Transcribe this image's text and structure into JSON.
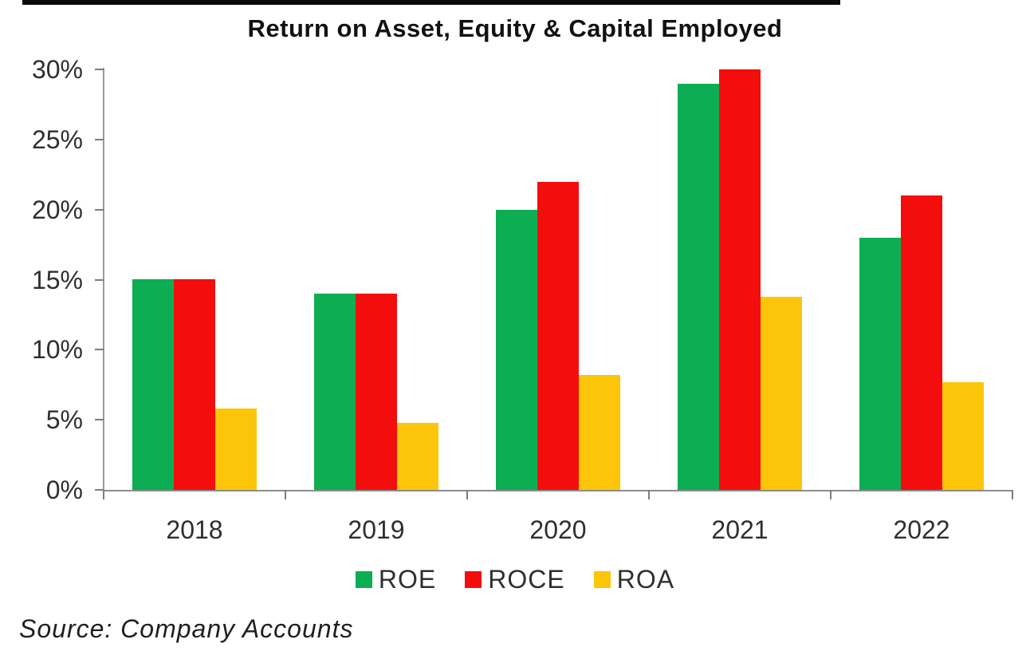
{
  "title": "Return on Asset, Equity & Capital Employed",
  "source_note": "Source: Company Accounts",
  "colors": {
    "roe_green": "#0DAE53",
    "roce_red": "#F40D0D",
    "roa_yellow": "#FDC50A",
    "axis_gray": "#8C8C8C",
    "text": "#2F2F2F",
    "top_rule_black": "#0B0B0B"
  },
  "chart_data": {
    "type": "bar",
    "title": "Return on Asset, Equity & Capital Employed",
    "categories": [
      "2018",
      "2019",
      "2020",
      "2021",
      "2022"
    ],
    "series": [
      {
        "name": "ROE",
        "color": "#0DAE53",
        "values": [
          15,
          14,
          20,
          29,
          18
        ]
      },
      {
        "name": "ROCE",
        "color": "#F40D0D",
        "values": [
          15,
          14,
          22,
          30,
          21
        ]
      },
      {
        "name": "ROA",
        "color": "#FDC50A",
        "values": [
          5.8,
          4.8,
          8.2,
          13.8,
          7.7
        ]
      }
    ],
    "xlabel": "",
    "ylabel": "",
    "ylim": [
      0,
      30
    ],
    "y_ticks": [
      {
        "label": "0%",
        "value": 0
      },
      {
        "label": "5%",
        "value": 5
      },
      {
        "label": "10%",
        "value": 10
      },
      {
        "label": "15%",
        "value": 15
      },
      {
        "label": "20%",
        "value": 20
      },
      {
        "label": "25%",
        "value": 25
      },
      {
        "label": "30%",
        "value": 30
      }
    ],
    "grid": false,
    "legend_position": "bottom"
  }
}
